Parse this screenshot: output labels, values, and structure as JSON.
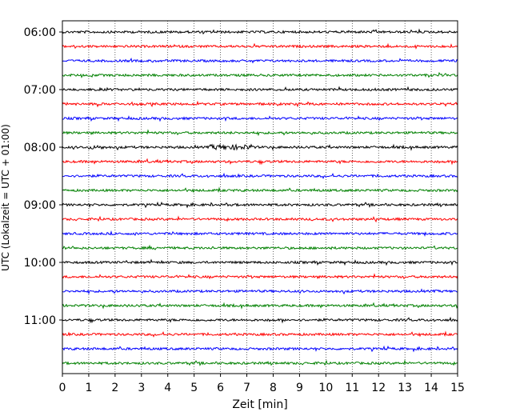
{
  "chart_data": {
    "type": "line",
    "title": "",
    "xlabel": "Zeit  [min]",
    "ylabel": "UTC (Lokalzeit = UTC + 01:00)",
    "xlim": [
      0,
      15
    ],
    "x_ticks": [
      "0",
      "1",
      "2",
      "3",
      "4",
      "5",
      "6",
      "7",
      "8",
      "9",
      "10",
      "11",
      "12",
      "13",
      "14",
      "15"
    ],
    "y_ticks": [
      "06:00",
      "07:00",
      "08:00",
      "09:00",
      "10:00",
      "11:00"
    ],
    "trace_start": "06:00",
    "trace_interval_min": 15,
    "trace_count": 24,
    "trace_colors": [
      "#000000",
      "#ff0000",
      "#0000ff",
      "#008000"
    ],
    "grid": "vertical dotted",
    "legend": "none"
  }
}
